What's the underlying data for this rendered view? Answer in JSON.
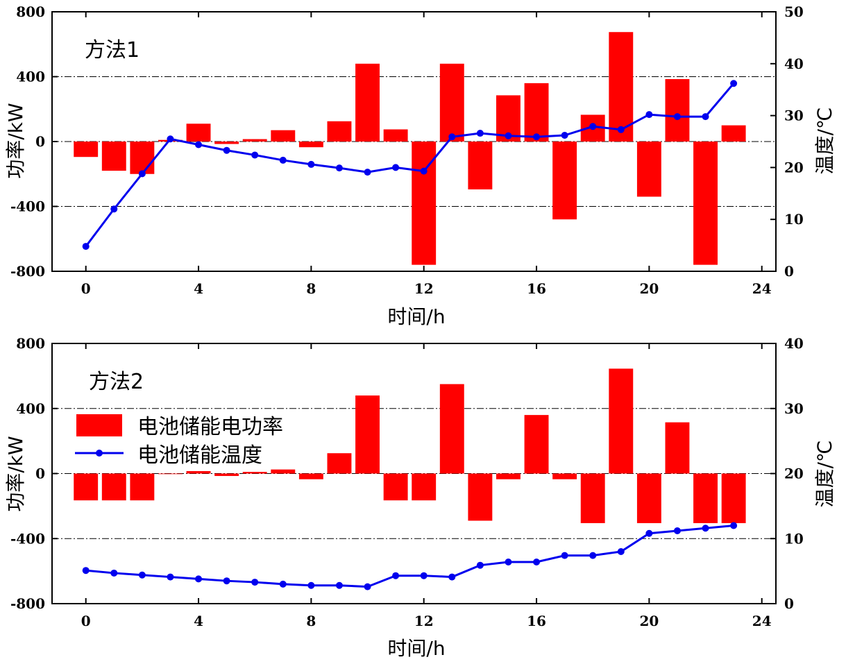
{
  "colors": {
    "bar": "#ff0000",
    "line": "#0000ee",
    "axis": "#000000",
    "refline": "#000000"
  },
  "legend": {
    "bar_label": "电池储能电功率",
    "line_label": "电池储能温度",
    "placement": "upper-left of bottom panel"
  },
  "chart_data": [
    {
      "type": "bar",
      "panel_label": "方法1",
      "xlabel": "时间/h",
      "ylabel": "功率/kW",
      "y2label": "温度/℃",
      "xlim": [
        -1.2,
        24.5
      ],
      "xticks": [
        0,
        4,
        8,
        12,
        16,
        20,
        24
      ],
      "ylim": [
        -800,
        800
      ],
      "yticks": [
        -800,
        -400,
        0,
        400,
        800
      ],
      "y2lim": [
        0,
        50
      ],
      "y2ticks": [
        0,
        10,
        20,
        30,
        40,
        50
      ],
      "grid_lines_at": [
        -400,
        0,
        400
      ],
      "x": [
        0,
        1,
        2,
        3,
        4,
        5,
        6,
        7,
        8,
        9,
        10,
        11,
        12,
        13,
        14,
        15,
        16,
        17,
        18,
        19,
        20,
        21,
        22,
        23
      ],
      "series": [
        {
          "name": "电池储能电功率",
          "kind": "bar",
          "axis": "left",
          "values": [
            -95,
            -180,
            -200,
            10,
            110,
            -15,
            15,
            70,
            -35,
            125,
            480,
            75,
            -760,
            480,
            -295,
            285,
            360,
            -480,
            165,
            675,
            -340,
            385,
            -760,
            100
          ]
        },
        {
          "name": "电池储能温度",
          "kind": "line",
          "axis": "right",
          "values": [
            4.8,
            12,
            18.8,
            25.5,
            24.4,
            23.3,
            22.4,
            21.4,
            20.6,
            19.9,
            19.1,
            20,
            19.3,
            25.9,
            26.6,
            26.1,
            25.9,
            26.2,
            27.9,
            27.3,
            30.2,
            29.8,
            29.8,
            36.2
          ]
        }
      ]
    },
    {
      "type": "bar",
      "panel_label": "方法2",
      "xlabel": "时间/h",
      "ylabel": "功率/kW",
      "y2label": "温度/℃",
      "xlim": [
        -1.2,
        24.5
      ],
      "xticks": [
        0,
        4,
        8,
        12,
        16,
        20,
        24
      ],
      "ylim": [
        -800,
        800
      ],
      "yticks": [
        -800,
        -400,
        0,
        400,
        800
      ],
      "y2lim": [
        0,
        40
      ],
      "y2ticks": [
        0,
        10,
        20,
        30,
        40
      ],
      "grid_lines_at": [
        -400,
        0,
        400
      ],
      "x": [
        0,
        1,
        2,
        3,
        4,
        5,
        6,
        7,
        8,
        9,
        10,
        11,
        12,
        13,
        14,
        15,
        16,
        17,
        18,
        19,
        20,
        21,
        22,
        23
      ],
      "series": [
        {
          "name": "电池储能电功率",
          "kind": "bar",
          "axis": "left",
          "values": [
            -165,
            -165,
            -165,
            0,
            15,
            -15,
            10,
            25,
            -35,
            125,
            480,
            -165,
            -165,
            550,
            -290,
            -35,
            360,
            -35,
            -305,
            645,
            -305,
            315,
            -305,
            -305
          ]
        },
        {
          "name": "电池储能温度",
          "kind": "line",
          "axis": "right",
          "values": [
            5.1,
            4.7,
            4.4,
            4.1,
            3.8,
            3.5,
            3.3,
            3,
            2.8,
            2.8,
            2.6,
            4.3,
            4.3,
            4.1,
            5.9,
            6.4,
            6.4,
            7.4,
            7.4,
            8,
            10.8,
            11.2,
            11.6,
            12
          ]
        }
      ]
    }
  ]
}
